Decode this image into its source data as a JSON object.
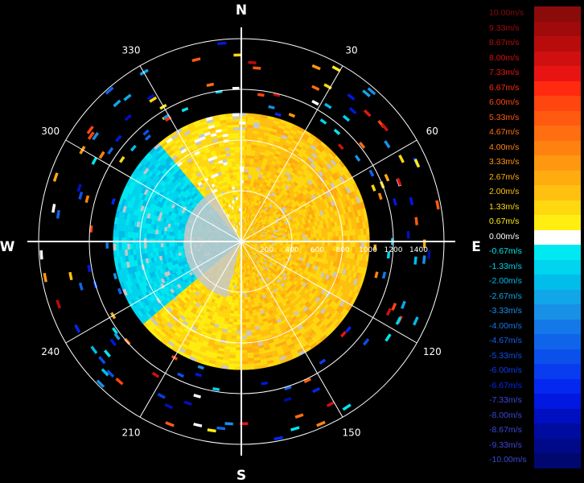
{
  "chart_data": {
    "type": "polar-heatmap",
    "title": "",
    "cardinals": {
      "north": "N",
      "east": "E",
      "south": "S",
      "west": "W"
    },
    "azimuth_labels": [
      "30",
      "60",
      "120",
      "150",
      "210",
      "240",
      "300",
      "330"
    ],
    "range_labels": [
      "200",
      "400",
      "600",
      "800",
      "1000",
      "1200",
      "1400"
    ],
    "range_max": 1600,
    "ring_ranges": [
      400,
      800,
      1200,
      1600
    ],
    "spoke_step_deg": 30,
    "units": "m/s",
    "legend_entries": [
      {
        "label": "10.00m/s",
        "value": 10.0,
        "color": "#8b0a0a"
      },
      {
        "label": "9.33m/s",
        "value": 9.33,
        "color": "#a00a0a"
      },
      {
        "label": "8.67m/s",
        "value": 8.67,
        "color": "#b80c0c"
      },
      {
        "label": "8.00m/s",
        "value": 8.0,
        "color": "#d01010"
      },
      {
        "label": "7.33m/s",
        "value": 7.33,
        "color": "#e81414"
      },
      {
        "label": "6.67m/s",
        "value": 6.67,
        "color": "#ff2a10"
      },
      {
        "label": "6.00m/s",
        "value": 6.0,
        "color": "#ff4510"
      },
      {
        "label": "5.33m/s",
        "value": 5.33,
        "color": "#ff5a10"
      },
      {
        "label": "4.67m/s",
        "value": 4.67,
        "color": "#ff6e10"
      },
      {
        "label": "4.00m/s",
        "value": 4.0,
        "color": "#ff8210"
      },
      {
        "label": "3.33m/s",
        "value": 3.33,
        "color": "#ff9810"
      },
      {
        "label": "2.67m/s",
        "value": 2.67,
        "color": "#ffac10"
      },
      {
        "label": "2.00m/s",
        "value": 2.0,
        "color": "#ffc010"
      },
      {
        "label": "1.33m/s",
        "value": 1.33,
        "color": "#ffd810"
      },
      {
        "label": "0.67m/s",
        "value": 0.67,
        "color": "#ffee10"
      },
      {
        "label": "0.00m/s",
        "value": 0.0,
        "color": "#ffffff"
      },
      {
        "label": "-0.67m/s",
        "value": -0.67,
        "color": "#00e8f0"
      },
      {
        "label": "-1.33m/s",
        "value": -1.33,
        "color": "#00d4ee"
      },
      {
        "label": "-2.00m/s",
        "value": -2.0,
        "color": "#00bdea"
      },
      {
        "label": "-2.67m/s",
        "value": -2.67,
        "color": "#10a6e8"
      },
      {
        "label": "-3.33m/s",
        "value": -3.33,
        "color": "#1890e6"
      },
      {
        "label": "-4.00m/s",
        "value": -4.0,
        "color": "#1478e8"
      },
      {
        "label": "-4.67m/s",
        "value": -4.67,
        "color": "#1064ea"
      },
      {
        "label": "-5.33m/s",
        "value": -5.33,
        "color": "#0c50ec"
      },
      {
        "label": "-6.00m/s",
        "value": -6.0,
        "color": "#083cee"
      },
      {
        "label": "-6.67m/s",
        "value": -6.67,
        "color": "#0428f0"
      },
      {
        "label": "-7.33m/s",
        "value": -7.33,
        "color": "#0018e0"
      },
      {
        "label": "-8.00m/s",
        "value": -8.0,
        "color": "#0010c0"
      },
      {
        "label": "-8.67m/s",
        "value": -8.67,
        "color": "#000ca0"
      },
      {
        "label": "-9.33m/s",
        "value": -9.33,
        "color": "#000a88"
      },
      {
        "label": "-10.00m/s",
        "value": -10.0,
        "color": "#000870"
      }
    ],
    "velocity_field": {
      "no_data_color": "#c8c8c8",
      "sectors": [
        {
          "az_from": 0,
          "az_to": 180,
          "r_from": 0,
          "r_to": 1000,
          "value": 1.8
        },
        {
          "az_from": 180,
          "az_to": 230,
          "r_from": 0,
          "r_to": 1000,
          "value": 1.2
        },
        {
          "az_from": 230,
          "az_to": 320,
          "r_from": 0,
          "r_to": 1000,
          "value": -1.2
        },
        {
          "az_from": 320,
          "az_to": 360,
          "r_from": 0,
          "r_to": 1000,
          "value": 1.0
        }
      ]
    }
  }
}
